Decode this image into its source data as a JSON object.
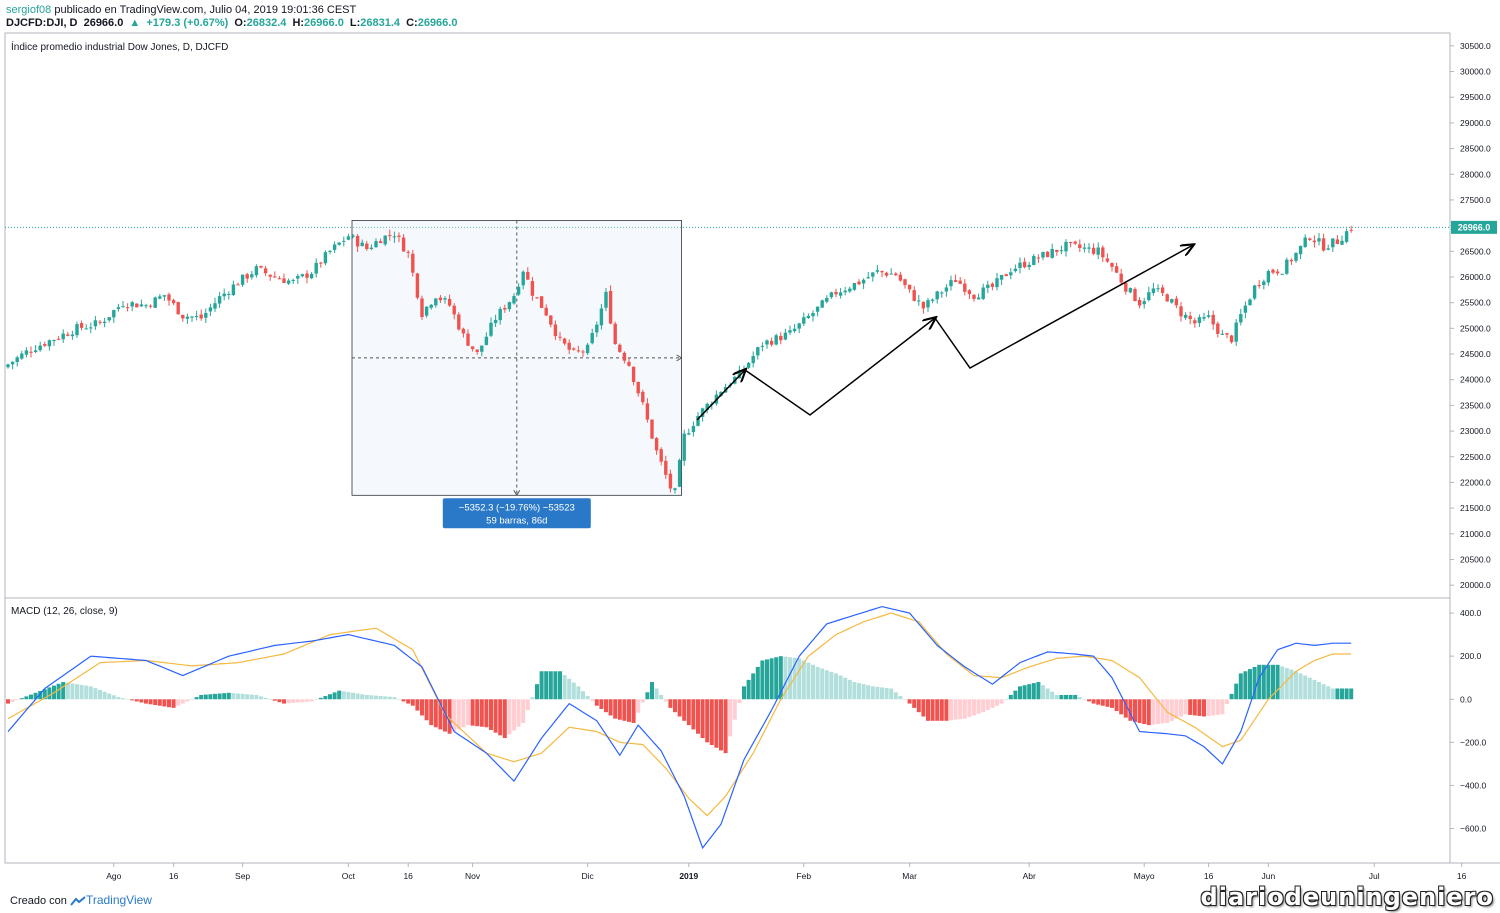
{
  "header": {
    "author": "sergiof08",
    "published_text": "publicado en TradingView.com, Julio 04, 2019 19:01:36 CEST",
    "symbol": "DJCFD:DJI, D",
    "last": "26966.0",
    "change": "+179.3 (+0.67%)",
    "o_label": "O:",
    "o_value": "26832.4",
    "h_label": "H:",
    "h_value": "26966.0",
    "l_label": "L:",
    "l_value": "26831.4",
    "c_label": "C:",
    "c_value": "26966.0"
  },
  "footer": {
    "created_with": "Creado con",
    "brand": "TradingView",
    "watermark": "diariodeuningeniero"
  },
  "colors": {
    "up": "#26a69a",
    "down": "#ef5350",
    "macd": "#2962ff",
    "signal": "#f4b942",
    "hist_up_strong": "#26a69a",
    "hist_up_weak": "#b2dfdb",
    "hist_down_strong": "#ef5350",
    "hist_down_weak": "#ffcdd2",
    "measure_box": "#2a79c9"
  },
  "chart_data": [
    {
      "type": "candlestick",
      "title": "Índice promedio industrial Dow Jones, D, DJCFD",
      "ylim": [
        19750,
        30750
      ],
      "y_ticks": [
        "30500.0",
        "30000.0",
        "29500.0",
        "29000.0",
        "28500.0",
        "28000.0",
        "27500.0",
        "27000.0",
        "26500.0",
        "26000.0",
        "25500.0",
        "25000.0",
        "24500.0",
        "24000.0",
        "23500.0",
        "23000.0",
        "22500.0",
        "22000.0",
        "21500.0",
        "21000.0",
        "20500.0",
        "20000.0"
      ],
      "last_price_label": "26966.0",
      "x_labels": [
        "Ago",
        "16",
        "Sep",
        "Oct",
        "16",
        "Nov",
        "Dic",
        "2019",
        "Feb",
        "Mar",
        "Abr",
        "Mayo",
        "16",
        "Jun",
        "Jul",
        "16"
      ],
      "close_path": [
        [
          0,
          24300
        ],
        [
          5,
          24600
        ],
        [
          10,
          24800
        ],
        [
          15,
          25000
        ],
        [
          20,
          25100
        ],
        [
          25,
          25500
        ],
        [
          30,
          25450
        ],
        [
          34,
          25650
        ],
        [
          38,
          25250
        ],
        [
          42,
          25200
        ],
        [
          46,
          25600
        ],
        [
          50,
          25900
        ],
        [
          54,
          26150
        ],
        [
          58,
          26000
        ],
        [
          62,
          25900
        ],
        [
          66,
          26100
        ],
        [
          70,
          26500
        ],
        [
          74,
          26800
        ],
        [
          78,
          26550
        ],
        [
          81,
          26750
        ],
        [
          84,
          26850
        ],
        [
          87,
          26450
        ],
        [
          90,
          25300
        ],
        [
          93,
          25650
        ],
        [
          96,
          25450
        ],
        [
          99,
          24850
        ],
        [
          102,
          24500
        ],
        [
          106,
          25200
        ],
        [
          110,
          25650
        ],
        [
          112,
          26150
        ],
        [
          114,
          25700
        ],
        [
          117,
          25300
        ],
        [
          120,
          24750
        ],
        [
          123,
          24500
        ],
        [
          126,
          24600
        ],
        [
          128,
          25100
        ],
        [
          130,
          25650
        ],
        [
          132,
          24700
        ],
        [
          135,
          24300
        ],
        [
          138,
          23500
        ],
        [
          141,
          22600
        ],
        [
          144,
          21900
        ],
        [
          145,
          21800
        ],
        [
          147,
          22900
        ],
        [
          150,
          23300
        ],
        [
          155,
          23800
        ],
        [
          159,
          24100
        ],
        [
          164,
          24700
        ],
        [
          170,
          24900
        ],
        [
          175,
          25300
        ],
        [
          180,
          25700
        ],
        [
          185,
          25900
        ],
        [
          189,
          26100
        ],
        [
          193,
          26050
        ],
        [
          196,
          25700
        ],
        [
          199,
          25400
        ],
        [
          202,
          25650
        ],
        [
          206,
          25950
        ],
        [
          210,
          25650
        ],
        [
          214,
          25800
        ],
        [
          218,
          26150
        ],
        [
          222,
          26300
        ],
        [
          226,
          26450
        ],
        [
          230,
          26600
        ],
        [
          234,
          26550
        ],
        [
          237,
          26500
        ],
        [
          240,
          26200
        ],
        [
          243,
          25800
        ],
        [
          246,
          25500
        ],
        [
          249,
          25750
        ],
        [
          252,
          25600
        ],
        [
          255,
          25300
        ],
        [
          258,
          25100
        ],
        [
          261,
          25200
        ],
        [
          264,
          24850
        ],
        [
          266,
          24800
        ],
        [
          268,
          25250
        ],
        [
          271,
          25800
        ],
        [
          274,
          26100
        ],
        [
          277,
          26150
        ],
        [
          280,
          26450
        ],
        [
          283,
          26800
        ],
        [
          286,
          26600
        ],
        [
          289,
          26700
        ],
        [
          292,
          26966
        ]
      ],
      "measurement": {
        "label_line1": "−5352.3 (−19.76%) −53523",
        "label_line2": "59 barras, 86d",
        "from_price": 27100,
        "to_price": 21750
      }
    },
    {
      "type": "line",
      "title": "MACD (12, 26, close, 9)",
      "ylim": [
        -760,
        470
      ],
      "y_ticks": [
        "400.0",
        "200.0",
        "0.0",
        "−200.0",
        "−400.0",
        "−600.0"
      ],
      "series": [
        {
          "role": "macd",
          "values": [
            [
              0,
              -150
            ],
            [
              8,
              50
            ],
            [
              18,
              200
            ],
            [
              30,
              180
            ],
            [
              38,
              110
            ],
            [
              48,
              200
            ],
            [
              58,
              250
            ],
            [
              66,
              270
            ],
            [
              74,
              300
            ],
            [
              84,
              250
            ],
            [
              90,
              150
            ],
            [
              97,
              -150
            ],
            [
              104,
              -250
            ],
            [
              110,
              -380
            ],
            [
              116,
              -180
            ],
            [
              122,
              -20
            ],
            [
              128,
              -100
            ],
            [
              133,
              -260
            ],
            [
              137,
              -120
            ],
            [
              142,
              -240
            ],
            [
              147,
              -450
            ],
            [
              151,
              -690
            ],
            [
              155,
              -580
            ],
            [
              160,
              -280
            ],
            [
              166,
              -50
            ],
            [
              172,
              200
            ],
            [
              178,
              350
            ],
            [
              184,
              390
            ],
            [
              190,
              430
            ],
            [
              196,
              400
            ],
            [
              202,
              250
            ],
            [
              208,
              150
            ],
            [
              214,
              70
            ],
            [
              220,
              170
            ],
            [
              226,
              220
            ],
            [
              232,
              210
            ],
            [
              236,
              200
            ],
            [
              240,
              100
            ],
            [
              246,
              -150
            ],
            [
              252,
              -160
            ],
            [
              256,
              -170
            ],
            [
              260,
              -220
            ],
            [
              264,
              -300
            ],
            [
              268,
              -150
            ],
            [
              272,
              100
            ],
            [
              276,
              230
            ],
            [
              280,
              260
            ],
            [
              284,
              250
            ],
            [
              288,
              260
            ]
          ]
        },
        {
          "role": "signal",
          "values": [
            [
              0,
              -90
            ],
            [
              10,
              30
            ],
            [
              20,
              170
            ],
            [
              30,
              180
            ],
            [
              40,
              155
            ],
            [
              50,
              170
            ],
            [
              60,
              210
            ],
            [
              70,
              300
            ],
            [
              80,
              330
            ],
            [
              88,
              230
            ],
            [
              95,
              -70
            ],
            [
              104,
              -250
            ],
            [
              110,
              -290
            ],
            [
              116,
              -250
            ],
            [
              122,
              -130
            ],
            [
              128,
              -150
            ],
            [
              133,
              -200
            ],
            [
              138,
              -210
            ],
            [
              143,
              -320
            ],
            [
              148,
              -460
            ],
            [
              152,
              -540
            ],
            [
              156,
              -450
            ],
            [
              162,
              -250
            ],
            [
              168,
              0
            ],
            [
              174,
              200
            ],
            [
              180,
              300
            ],
            [
              186,
              360
            ],
            [
              192,
              400
            ],
            [
              198,
              360
            ],
            [
              204,
              210
            ],
            [
              210,
              110
            ],
            [
              216,
              100
            ],
            [
              222,
              150
            ],
            [
              228,
              190
            ],
            [
              234,
              200
            ],
            [
              240,
              180
            ],
            [
              246,
              100
            ],
            [
              252,
              -60
            ],
            [
              258,
              -130
            ],
            [
              264,
              -220
            ],
            [
              268,
              -190
            ],
            [
              274,
              0
            ],
            [
              280,
              130
            ],
            [
              284,
              180
            ],
            [
              288,
              210
            ]
          ]
        }
      ],
      "histogram": [
        [
          0,
          -20
        ],
        [
          6,
          30
        ],
        [
          12,
          80
        ],
        [
          18,
          60
        ],
        [
          24,
          10
        ],
        [
          30,
          -20
        ],
        [
          36,
          -40
        ],
        [
          42,
          20
        ],
        [
          48,
          30
        ],
        [
          54,
          20
        ],
        [
          60,
          -20
        ],
        [
          66,
          -10
        ],
        [
          72,
          40
        ],
        [
          78,
          20
        ],
        [
          84,
          10
        ],
        [
          88,
          -30
        ],
        [
          92,
          -120
        ],
        [
          96,
          -160
        ],
        [
          100,
          -120
        ],
        [
          104,
          -130
        ],
        [
          108,
          -180
        ],
        [
          112,
          -110
        ],
        [
          116,
          130
        ],
        [
          120,
          130
        ],
        [
          124,
          60
        ],
        [
          128,
          -30
        ],
        [
          132,
          -90
        ],
        [
          136,
          -110
        ],
        [
          140,
          80
        ],
        [
          144,
          -40
        ],
        [
          148,
          -120
        ],
        [
          152,
          -200
        ],
        [
          156,
          -250
        ],
        [
          160,
          60
        ],
        [
          164,
          180
        ],
        [
          168,
          200
        ],
        [
          172,
          190
        ],
        [
          176,
          150
        ],
        [
          180,
          120
        ],
        [
          184,
          80
        ],
        [
          188,
          60
        ],
        [
          192,
          50
        ],
        [
          196,
          -20
        ],
        [
          200,
          -100
        ],
        [
          204,
          -100
        ],
        [
          208,
          -90
        ],
        [
          212,
          -60
        ],
        [
          216,
          -20
        ],
        [
          220,
          60
        ],
        [
          224,
          80
        ],
        [
          228,
          20
        ],
        [
          232,
          20
        ],
        [
          236,
          -20
        ],
        [
          240,
          -40
        ],
        [
          244,
          -100
        ],
        [
          248,
          -120
        ],
        [
          252,
          -110
        ],
        [
          256,
          -70
        ],
        [
          260,
          -80
        ],
        [
          264,
          -70
        ],
        [
          268,
          120
        ],
        [
          272,
          160
        ],
        [
          276,
          160
        ],
        [
          280,
          130
        ],
        [
          284,
          90
        ],
        [
          288,
          50
        ]
      ]
    }
  ]
}
